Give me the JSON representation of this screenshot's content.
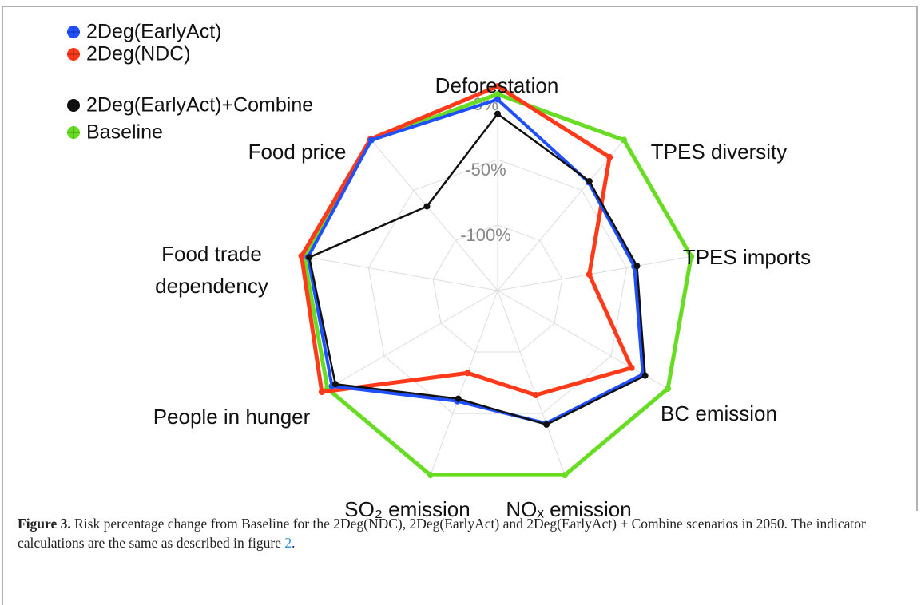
{
  "chart_data": {
    "type": "radar",
    "categories": [
      "Deforestation",
      "TPES diversity",
      "TPES imports",
      "BC emission",
      "NOₓ emission",
      "SO₂ emission",
      "People in hunger",
      "Food trade dependency",
      "Food price"
    ],
    "series": [
      {
        "name": "2Deg(EarlyAct)",
        "color": "#1f4fff",
        "values": [
          -4,
          -42,
          -44,
          -22,
          -42,
          -60,
          -4,
          -3,
          0
        ]
      },
      {
        "name": "2Deg(NDC)",
        "color": "#ff3a1a",
        "values": [
          6,
          -17,
          -79,
          -32,
          -65,
          -83,
          5,
          2,
          1
        ]
      },
      {
        "name": "2Deg(EarlyAct)+Combine",
        "color": "#111111",
        "values": [
          -15,
          -41,
          -42,
          -20,
          -41,
          -62,
          -7,
          -4,
          -66
        ]
      },
      {
        "name": "Baseline",
        "color": "#66dd22",
        "values": [
          0,
          0,
          0,
          0,
          0,
          0,
          0,
          0,
          0
        ]
      }
    ],
    "rlim": [
      -150,
      0
    ],
    "rticks": [
      {
        "value": -100,
        "label": "-100%"
      },
      {
        "value": -50,
        "label": "-50%"
      },
      {
        "value": 0,
        "label": "0%"
      }
    ],
    "grid": true,
    "legend": "top-left"
  },
  "caption": {
    "label": "Figure 3.",
    "text": "Risk percentage change from Baseline for the 2Deg(NDC), 2Deg(EarlyAct) and 2Deg(EarlyAct) + Combine scenarios in 2050. The indicator calculations are the same as described in figure ",
    "link": "2",
    "end": "."
  }
}
